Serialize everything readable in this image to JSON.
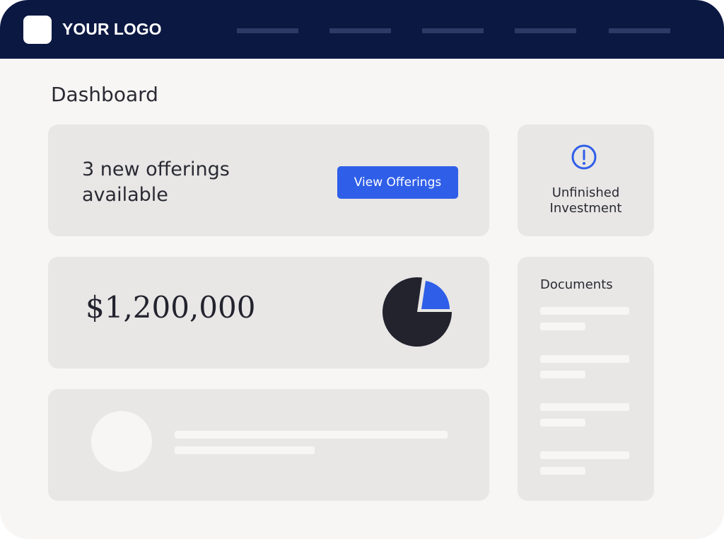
{
  "header": {
    "logo": "YOUR LOGO"
  },
  "page_title": "Dashboard",
  "offerings_card": {
    "text": "3 new offerings available",
    "button": "View Offerings"
  },
  "alert_card": {
    "text": "Unfinished Investment"
  },
  "balance_card": {
    "amount": "$1,200,000"
  },
  "documents_card": {
    "title": "Documents"
  }
}
